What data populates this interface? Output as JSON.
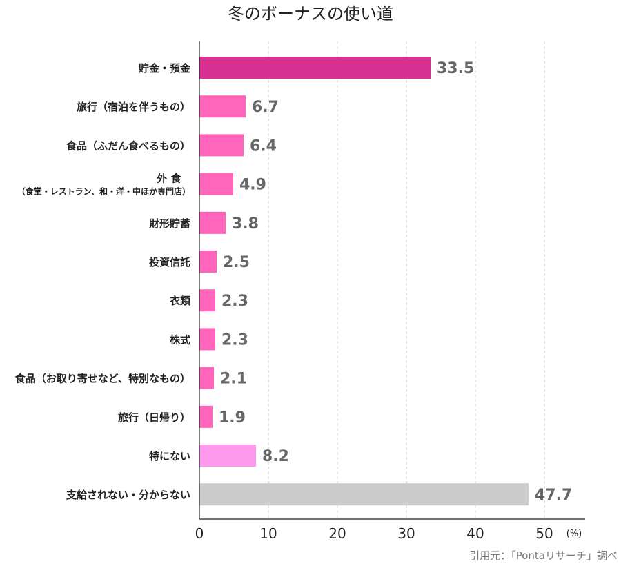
{
  "chart_data": {
    "type": "bar",
    "orientation": "horizontal",
    "title": "冬のボーナスの使い道",
    "categories": [
      "貯金・預金",
      "旅行（宿泊を伴うもの）",
      "食品（ふだん食べるもの）",
      "外食（食堂・レストラン、和・洋・中ほか専門店）",
      "財形貯蓄",
      "投資信託",
      "衣類",
      "株式",
      "食品（お取り寄せなど、特別なもの）",
      "旅行（日帰り）",
      "特にない",
      "支給されない・分からない"
    ],
    "category_labels": [
      [
        "貯金・預金"
      ],
      [
        "旅行（宿泊を伴うもの）"
      ],
      [
        "食品（ふだん食べるもの）"
      ],
      [
        "外 食",
        "（食堂・レストラン、和・洋・中ほか専門店）"
      ],
      [
        "財形貯蓄"
      ],
      [
        "投資信託"
      ],
      [
        "衣類"
      ],
      [
        "株式"
      ],
      [
        "食品（お取り寄せなど、特別なもの）"
      ],
      [
        "旅行（日帰り）"
      ],
      [
        "特にない"
      ],
      [
        "支給されない・分からない"
      ]
    ],
    "values": [
      33.5,
      6.7,
      6.4,
      4.9,
      3.8,
      2.5,
      2.3,
      2.3,
      2.1,
      1.9,
      8.2,
      47.7
    ],
    "value_labels": [
      "33.5",
      "6.7",
      "6.4",
      "4.9",
      "3.8",
      "2.5",
      "2.3",
      "2.3",
      "2.1",
      "1.9",
      "8.2",
      "47.7"
    ],
    "bar_colors": [
      "#d63090",
      "#ff66bb",
      "#ff66bb",
      "#ff66bb",
      "#ff66bb",
      "#ff66bb",
      "#ff66bb",
      "#ff66bb",
      "#ff66bb",
      "#ff66bb",
      "#ff99ee",
      "#cccccc"
    ],
    "x_ticks": [
      0,
      10,
      20,
      30,
      40,
      50
    ],
    "x_tick_labels": [
      "0",
      "10",
      "20",
      "30",
      "40",
      "50"
    ],
    "xlim": [
      0,
      56
    ],
    "xlabel": "(%)",
    "ylabel": "",
    "grid": "vertical dashed",
    "legend": "none",
    "source": "引用元：「Pontaリサーチ」調べ"
  }
}
